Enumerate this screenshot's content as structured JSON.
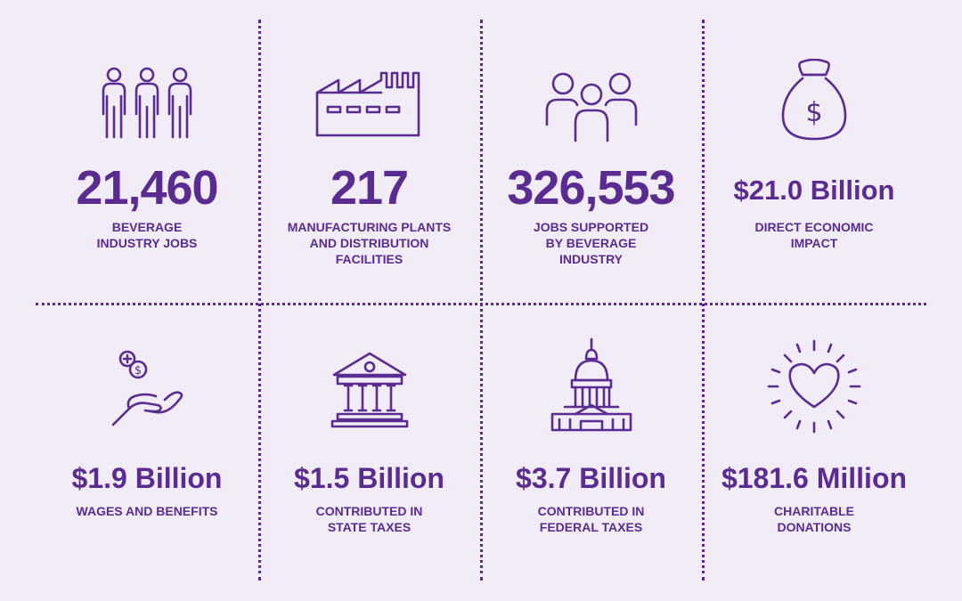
{
  "stats": [
    {
      "value": "21,460",
      "label": "BEVERAGE\nINDUSTRY JOBS",
      "icon": "workers-icon"
    },
    {
      "value": "217",
      "label": "MANUFACTURING PLANTS\nAND DISTRIBUTION\nFACILITIES",
      "icon": "factory-icon"
    },
    {
      "value": "326,553",
      "label": "JOBS SUPPORTED\nBY BEVERAGE\nINDUSTRY",
      "icon": "people-group-icon"
    },
    {
      "value": "$21.0 Billion",
      "label": "DIRECT ECONOMIC\nIMPACT",
      "icon": "money-bag-icon"
    },
    {
      "value": "$1.9 Billion",
      "label": "WAGES AND BENEFITS",
      "icon": "hand-coins-icon"
    },
    {
      "value": "$1.5 Billion",
      "label": "CONTRIBUTED IN\nSTATE TAXES",
      "icon": "courthouse-icon"
    },
    {
      "value": "$3.7 Billion",
      "label": "CONTRIBUTED IN\nFEDERAL TAXES",
      "icon": "capitol-icon"
    },
    {
      "value": "$181.6 Million",
      "label": "CHARITABLE\nDONATIONS",
      "icon": "heart-icon"
    }
  ],
  "colors": {
    "accent": "#5a2b91",
    "background": "#f1ecf8"
  }
}
